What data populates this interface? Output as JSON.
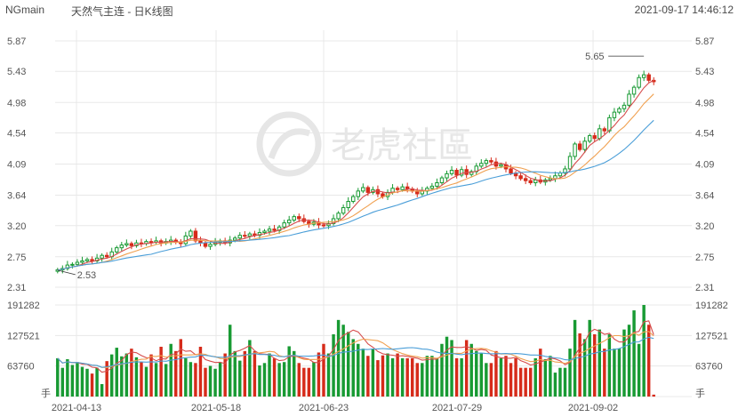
{
  "header": {
    "symbol": "NGmain",
    "title": "天然气主连 - 日K线图",
    "timestamp": "2021-09-17 14:46:12"
  },
  "watermark": {
    "text": "老虎社區"
  },
  "colors": {
    "up": "#d62b1a",
    "down": "#189a33",
    "ma5": "#d64d4d",
    "ma10": "#f0a050",
    "ma20": "#4a9ed8",
    "grid": "#e8e8e8"
  },
  "chart_data": {
    "type": "candlestick",
    "price_axis": {
      "ylim": [
        2.31,
        5.87
      ],
      "ticks": [
        "5.87",
        "5.43",
        "4.98",
        "4.54",
        "4.09",
        "3.64",
        "3.20",
        "2.75",
        "2.31"
      ]
    },
    "volume_axis": {
      "ylim": [
        0,
        191282
      ],
      "ticks": [
        "191282",
        "127521",
        "63760"
      ],
      "unit": "手"
    },
    "x_ticks": [
      "2021-04-13",
      "2021-05-18",
      "2021-06-23",
      "2021-07-29",
      "2021-09-02"
    ],
    "annotations": {
      "high": "5.65",
      "low": "2.53"
    },
    "closes": [
      2.56,
      2.58,
      2.63,
      2.64,
      2.67,
      2.69,
      2.71,
      2.69,
      2.73,
      2.77,
      2.75,
      2.82,
      2.88,
      2.92,
      2.94,
      2.91,
      2.95,
      2.94,
      2.97,
      2.96,
      2.98,
      2.95,
      2.97,
      2.99,
      2.96,
      2.94,
      3.05,
      3.12,
      2.98,
      2.95,
      2.9,
      2.93,
      2.96,
      2.98,
      2.95,
      2.99,
      3.02,
      3.06,
      3.05,
      3.08,
      3.06,
      3.1,
      3.12,
      3.15,
      3.13,
      3.18,
      3.24,
      3.28,
      3.33,
      3.3,
      3.26,
      3.22,
      3.25,
      3.21,
      3.2,
      3.23,
      3.3,
      3.38,
      3.46,
      3.55,
      3.62,
      3.7,
      3.75,
      3.68,
      3.72,
      3.66,
      3.62,
      3.68,
      3.74,
      3.72,
      3.76,
      3.73,
      3.7,
      3.66,
      3.7,
      3.74,
      3.77,
      3.82,
      3.89,
      3.95,
      4.0,
      3.93,
      4.01,
      3.94,
      3.98,
      4.06,
      4.1,
      4.14,
      4.12,
      4.06,
      4.08,
      4.02,
      3.96,
      3.92,
      3.88,
      3.85,
      3.82,
      3.86,
      3.83,
      3.86,
      3.88,
      3.92,
      3.96,
      4.02,
      4.2,
      4.38,
      4.3,
      4.42,
      4.5,
      4.46,
      4.6,
      4.57,
      4.76,
      4.84,
      4.89,
      4.94,
      5.1,
      5.2,
      5.34,
      5.38,
      5.3,
      5.28
    ],
    "volumes": [
      80000,
      60000,
      78000,
      66000,
      72000,
      62000,
      58000,
      48000,
      60000,
      26000,
      74000,
      88000,
      102000,
      84000,
      90000,
      100000,
      82000,
      72000,
      62000,
      88000,
      70000,
      104000,
      68000,
      110000,
      95000,
      120000,
      80000,
      72000,
      70000,
      104000,
      60000,
      64000,
      58000,
      72000,
      90000,
      150000,
      95000,
      75000,
      95000,
      118000,
      95000,
      65000,
      70000,
      90000,
      80000,
      70000,
      72000,
      105000,
      95000,
      70000,
      60000,
      60000,
      72000,
      92000,
      110000,
      90000,
      130000,
      160000,
      150000,
      135000,
      120000,
      110000,
      100000,
      85000,
      100000,
      76000,
      86000,
      90000,
      80000,
      90000,
      80000,
      80000,
      80000,
      70000,
      70000,
      85000,
      85000,
      80000,
      110000,
      125000,
      118000,
      80000,
      80000,
      118000,
      110000,
      95000,
      90000,
      70000,
      70000,
      95000,
      80000,
      85000,
      70000,
      80000,
      60000,
      60000,
      60000,
      80000,
      100000,
      78000,
      85000,
      50000,
      60000,
      60000,
      100000,
      160000,
      132000,
      120000,
      160000,
      130000,
      140000,
      100000,
      130000,
      100000,
      100000,
      140000,
      150000,
      180000,
      110000,
      200000,
      150000,
      4000
    ]
  }
}
